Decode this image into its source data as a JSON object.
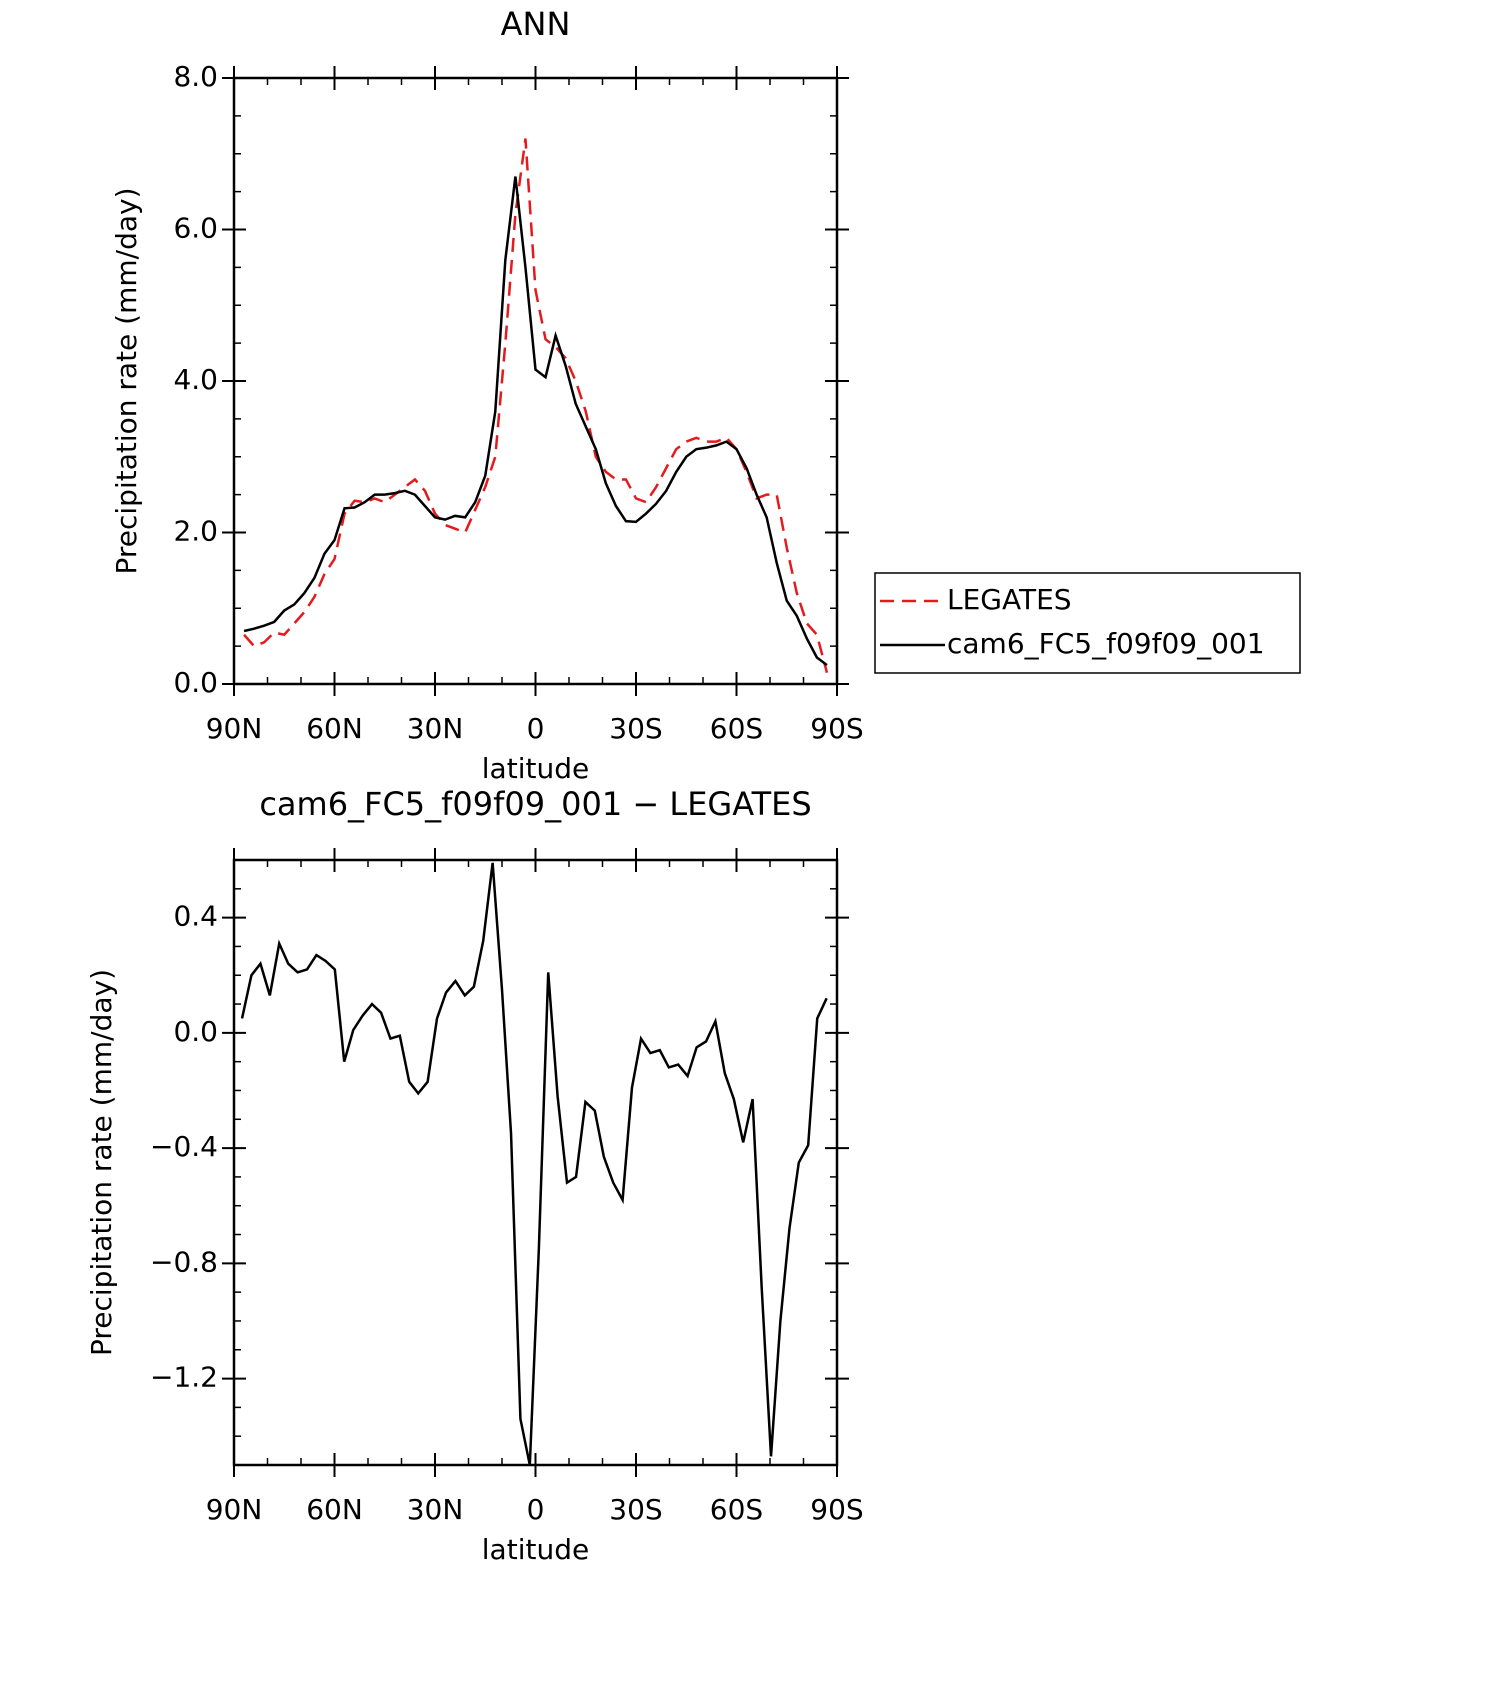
{
  "chart_data": [
    {
      "type": "line",
      "title": "ANN",
      "xlabel": "latitude",
      "ylabel": "Precipitation rate (mm/day)",
      "x": [
        87,
        84,
        81,
        78,
        75,
        72,
        69,
        66,
        63,
        60,
        57,
        54,
        51,
        48,
        45,
        42,
        39,
        36,
        33,
        30,
        27,
        24,
        21,
        18,
        15,
        12,
        9,
        6,
        3,
        0,
        -3,
        -6,
        -9,
        -12,
        -15,
        -18,
        -21,
        -24,
        -27,
        -30,
        -33,
        -36,
        -39,
        -42,
        -45,
        -48,
        -51,
        -54,
        -57,
        -60,
        -63,
        -66,
        -69,
        -72,
        -75,
        -78,
        -81,
        -84,
        -87
      ],
      "series": [
        {
          "name": "LEGATES",
          "color": "#e41a1c",
          "line_style": "dashed",
          "values": [
            0.65,
            0.5,
            0.55,
            0.68,
            0.65,
            0.8,
            0.95,
            1.15,
            1.45,
            1.65,
            2.25,
            2.42,
            2.4,
            2.45,
            2.4,
            2.5,
            2.6,
            2.7,
            2.55,
            2.25,
            2.1,
            2.05,
            2.0,
            2.3,
            2.6,
            3.0,
            4.5,
            6.2,
            7.2,
            5.2,
            4.55,
            4.45,
            4.3,
            4.0,
            3.6,
            3.0,
            2.8,
            2.7,
            2.7,
            2.45,
            2.4,
            2.6,
            2.85,
            3.1,
            3.2,
            3.25,
            3.2,
            3.2,
            3.25,
            3.1,
            2.8,
            2.45,
            2.5,
            2.5,
            1.8,
            1.2,
            0.8,
            0.65,
            0.15
          ]
        },
        {
          "name": "cam6_FC5_f09f09_001",
          "color": "#000000",
          "line_style": "solid",
          "values": [
            0.7,
            0.73,
            0.77,
            0.82,
            0.97,
            1.05,
            1.2,
            1.4,
            1.72,
            1.9,
            2.32,
            2.33,
            2.4,
            2.5,
            2.5,
            2.52,
            2.55,
            2.5,
            2.35,
            2.2,
            2.17,
            2.22,
            2.2,
            2.4,
            2.75,
            3.6,
            5.6,
            6.7,
            5.5,
            4.15,
            4.05,
            4.6,
            4.2,
            3.7,
            3.4,
            3.1,
            2.65,
            2.35,
            2.15,
            2.14,
            2.25,
            2.38,
            2.55,
            2.8,
            3.0,
            3.1,
            3.12,
            3.15,
            3.2,
            3.1,
            2.85,
            2.5,
            2.2,
            1.6,
            1.1,
            0.9,
            0.6,
            0.35,
            0.25
          ]
        }
      ],
      "xlim": [
        90,
        -90
      ],
      "xticks": [
        {
          "value": 90,
          "label": "90N"
        },
        {
          "value": 60,
          "label": "60N"
        },
        {
          "value": 30,
          "label": "30N"
        },
        0,
        {
          "value": -30,
          "label": "30S"
        },
        {
          "value": -60,
          "label": "60S"
        },
        {
          "value": -90,
          "label": "90S"
        }
      ],
      "ylim": [
        0,
        8
      ],
      "yticks": [
        {
          "value": 0,
          "label": "0.0"
        },
        {
          "value": 2,
          "label": "2.0"
        },
        {
          "value": 4,
          "label": "4.0"
        },
        {
          "value": 6,
          "label": "6.0"
        },
        {
          "value": 8,
          "label": "8.0"
        }
      ],
      "legend": "right"
    },
    {
      "type": "line",
      "title": "cam6_FC5_f09f09_001 − LEGATES",
      "xlabel": "latitude",
      "ylabel": "Precipitation rate (mm/day)",
      "x": [
        87.6,
        84.8,
        82.1,
        79.3,
        76.5,
        73.8,
        71.0,
        68.2,
        65.4,
        62.7,
        59.9,
        57.1,
        54.4,
        51.6,
        48.8,
        46.1,
        43.3,
        40.5,
        37.7,
        35.0,
        32.2,
        29.4,
        26.7,
        23.9,
        21.1,
        18.4,
        15.6,
        12.8,
        10.0,
        7.3,
        4.5,
        1.7,
        -1.0,
        -3.8,
        -6.6,
        -9.4,
        -12.1,
        -14.9,
        -17.7,
        -20.4,
        -23.2,
        -26.0,
        -28.8,
        -31.5,
        -34.3,
        -37.1,
        -39.8,
        -42.6,
        -45.4,
        -48.1,
        -50.9,
        -53.7,
        -56.5,
        -59.2,
        -62.0,
        -64.8,
        -67.5,
        -70.3,
        -73.1,
        -75.8,
        -78.6,
        -81.4,
        -84.1,
        -86.9
      ],
      "color": "#000000",
      "values": [
        0.05,
        0.2,
        0.24,
        0.13,
        0.31,
        0.24,
        0.21,
        0.22,
        0.27,
        0.25,
        0.22,
        -0.1,
        0.01,
        0.06,
        0.1,
        0.07,
        -0.02,
        -0.01,
        -0.17,
        -0.21,
        -0.17,
        0.05,
        0.14,
        0.18,
        0.13,
        0.16,
        0.32,
        0.59,
        0.15,
        -0.35,
        -1.34,
        -1.5,
        -0.75,
        0.21,
        -0.22,
        -0.52,
        -0.5,
        -0.24,
        -0.27,
        -0.43,
        -0.52,
        -0.58,
        -0.19,
        -0.02,
        -0.07,
        -0.06,
        -0.12,
        -0.11,
        -0.15,
        -0.05,
        -0.03,
        0.04,
        -0.14,
        -0.23,
        -0.38,
        -0.23,
        -0.88,
        -1.47,
        -1.0,
        -0.68,
        -0.45,
        -0.39,
        0.05,
        0.12
      ],
      "xlim": [
        90,
        -90
      ],
      "xticks": [
        {
          "value": 90,
          "label": "90N"
        },
        {
          "value": 60,
          "label": "60N"
        },
        {
          "value": 30,
          "label": "30N"
        },
        0,
        {
          "value": -30,
          "label": "30S"
        },
        {
          "value": -60,
          "label": "60S"
        },
        {
          "value": -90,
          "label": "90S"
        }
      ],
      "ylim": [
        -1.5,
        0.6
      ],
      "yticks": [
        {
          "value": -1.2,
          "label": "−1.2"
        },
        {
          "value": -0.8,
          "label": "−0.8"
        },
        {
          "value": -0.4,
          "label": "−0.4"
        },
        {
          "value": 0,
          "label": "0.0"
        },
        0.4
      ]
    }
  ]
}
